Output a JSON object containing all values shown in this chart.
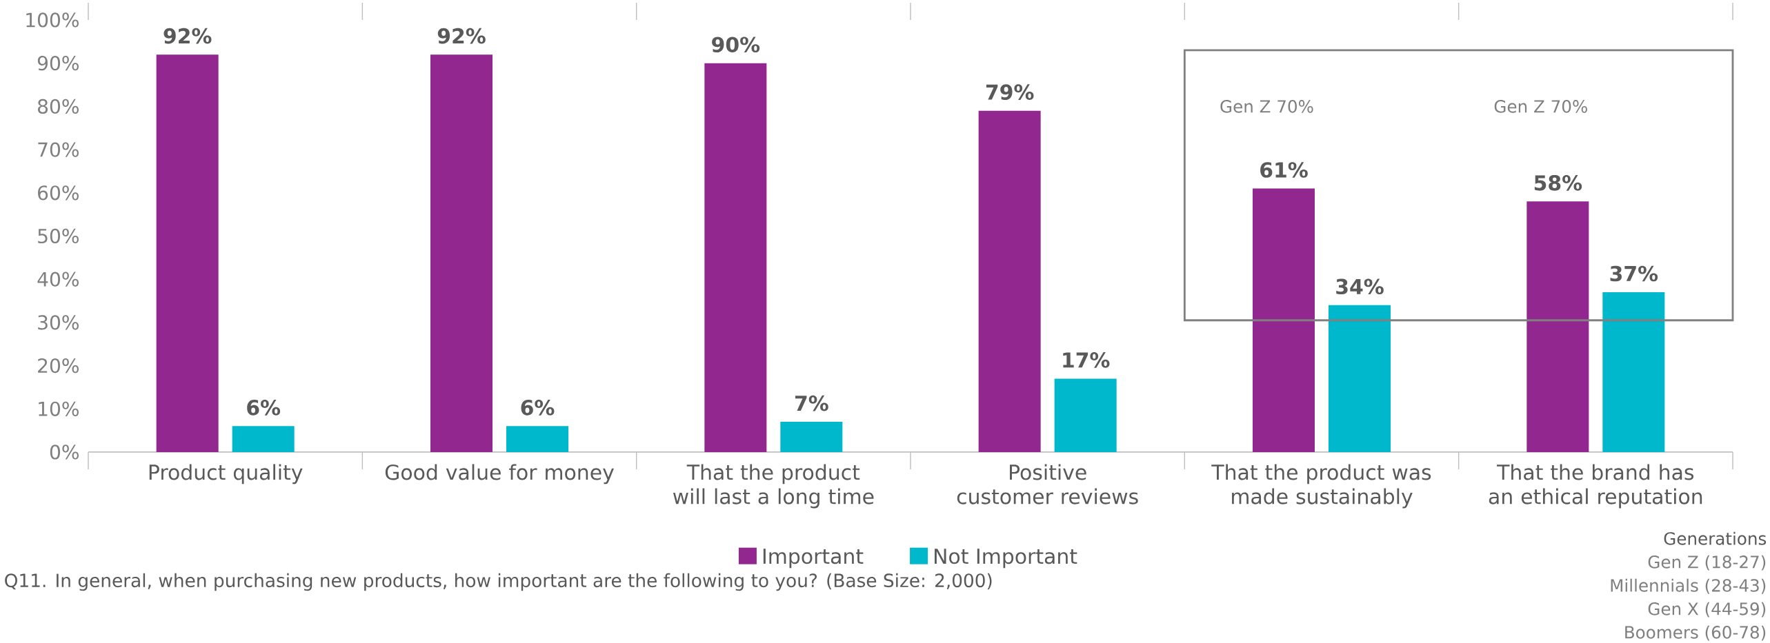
{
  "chart_data": {
    "type": "bar",
    "categories": [
      "Product quality",
      "Good value for money",
      "That the product will last a long time",
      "Positive customer reviews",
      "That the product was made sustainably",
      "That the brand has an ethical reputation"
    ],
    "series": [
      {
        "name": "Important",
        "color": "#92278f",
        "values": [
          92,
          92,
          90,
          79,
          61,
          58
        ],
        "value_labels": [
          "92%",
          "92%",
          "90%",
          "79%",
          "61%",
          "58%"
        ]
      },
      {
        "name": "Not Important",
        "color": "#00b8cc",
        "values": [
          6,
          6,
          7,
          17,
          34,
          37
        ],
        "value_labels": [
          "6%",
          "6%",
          "7%",
          "17%",
          "34%",
          "37%"
        ]
      }
    ],
    "ylim": [
      0,
      100
    ],
    "yticks": [
      {
        "value": 0,
        "label": "0%"
      },
      {
        "value": 10,
        "label": "10%"
      },
      {
        "value": 20,
        "label": "20%"
      },
      {
        "value": 30,
        "label": "30%"
      },
      {
        "value": 40,
        "label": "40%"
      },
      {
        "value": 50,
        "label": "50%"
      },
      {
        "value": 60,
        "label": "60%"
      },
      {
        "value": 70,
        "label": "70%"
      },
      {
        "value": 80,
        "label": "80%"
      },
      {
        "value": 90,
        "label": "90%"
      },
      {
        "value": 100,
        "label": "100%"
      }
    ],
    "legend": "bottom",
    "annotations": [
      "Gen Z 70%",
      "Gen Z 70%",
      "Generations",
      "Gen Z (18-27)",
      "Millennials (28-43)",
      "Gen X (44-59)",
      "Boomers (60-78)",
      "Q11. In general, when purchasing new products, how important are the following to you? (Base Size: 2,000)"
    ]
  }
}
